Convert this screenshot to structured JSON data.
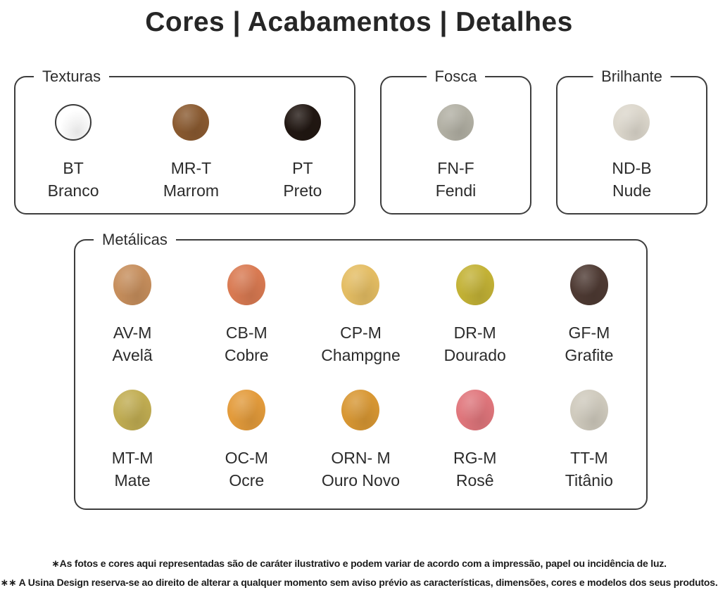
{
  "title": "Cores | Acabamentos | Detalhes",
  "groups": [
    {
      "label": "Texturas",
      "label_align": "left",
      "swatches": [
        {
          "code": "BT",
          "name": "Branco",
          "color": "#ffffff",
          "outlined": true
        },
        {
          "code": "MR-T",
          "name": "Marrom",
          "color": "#8a5a30"
        },
        {
          "code": "PT",
          "name": "Preto",
          "color": "#211712"
        }
      ]
    },
    {
      "label": "Fosca",
      "label_align": "center",
      "swatches": [
        {
          "code": "FN-F",
          "name": "Fendi",
          "color": "#b2b0a4"
        }
      ]
    },
    {
      "label": "Brilhante",
      "label_align": "center",
      "swatches": [
        {
          "code": "ND-B",
          "name": "Nude",
          "color": "#dcd7cc"
        }
      ]
    },
    {
      "label": "Metálicas",
      "label_align": "left",
      "swatches": [
        {
          "code": "AV-M",
          "name": "Avelã",
          "color": "#c68e5c"
        },
        {
          "code": "CB-M",
          "name": "Cobre",
          "color": "#d97a52"
        },
        {
          "code": "CP-M",
          "name": "Champgne",
          "color": "#e4bd63"
        },
        {
          "code": "DR-M",
          "name": "Dourado",
          "color": "#c3b236"
        },
        {
          "code": "GF-M",
          "name": "Grafite",
          "color": "#4e3a33"
        },
        {
          "code": "MT-M",
          "name": "Mate",
          "color": "#c1ad52"
        },
        {
          "code": "OC-M",
          "name": "Ocre",
          "color": "#e39b3b"
        },
        {
          "code": "ORN- M",
          "name": "Ouro Novo",
          "color": "#d89733"
        },
        {
          "code": "RG-M",
          "name": "Rosê",
          "color": "#e0767c"
        },
        {
          "code": "TT-M",
          "name": "Titânio",
          "color": "#cfcabd"
        }
      ]
    }
  ],
  "footnotes": [
    "∗As fotos e cores aqui representadas são de caráter ilustrativo e podem variar de acordo com a impressão, papel ou incidência de luz.",
    "∗∗ A Usina Design reserva-se ao direito de alterar a qualquer momento sem  aviso prévio  as características, dimensões, cores e modelos dos seus produtos."
  ]
}
